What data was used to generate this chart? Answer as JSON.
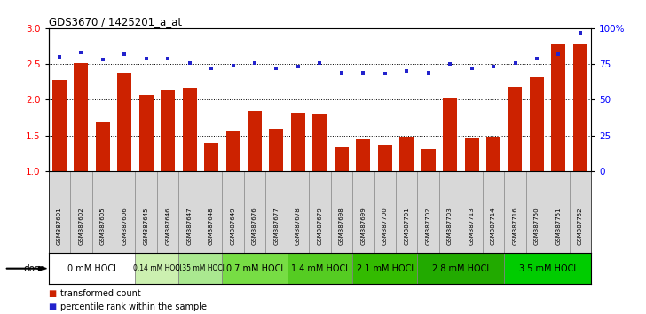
{
  "title": "GDS3670 / 1425201_a_at",
  "samples": [
    "GSM387601",
    "GSM387602",
    "GSM387605",
    "GSM387606",
    "GSM387645",
    "GSM387646",
    "GSM387647",
    "GSM387648",
    "GSM387649",
    "GSM387676",
    "GSM387677",
    "GSM387678",
    "GSM387679",
    "GSM387698",
    "GSM387699",
    "GSM387700",
    "GSM387701",
    "GSM387702",
    "GSM387703",
    "GSM387713",
    "GSM387714",
    "GSM387716",
    "GSM387750",
    "GSM387751",
    "GSM387752"
  ],
  "bar_values": [
    2.28,
    2.52,
    1.7,
    2.38,
    2.07,
    2.14,
    2.17,
    1.4,
    1.56,
    1.84,
    1.59,
    1.82,
    1.79,
    1.34,
    1.45,
    1.37,
    1.47,
    1.31,
    2.02,
    1.46,
    1.47,
    2.18,
    2.32,
    2.78,
    2.78
  ],
  "scatter_values": [
    80,
    83,
    78,
    82,
    79,
    79,
    76,
    72,
    74,
    76,
    72,
    73,
    76,
    69,
    69,
    68,
    70,
    69,
    75,
    72,
    73,
    76,
    79,
    82,
    97
  ],
  "dose_groups": [
    {
      "label": "0 mM HOCl",
      "start": 0,
      "end": 4,
      "color": "#ffffff"
    },
    {
      "label": "0.14 mM HOCl",
      "start": 4,
      "end": 6,
      "color": "#ccf0b0"
    },
    {
      "label": "0.35 mM HOCl",
      "start": 6,
      "end": 8,
      "color": "#aae890"
    },
    {
      "label": "0.7 mM HOCl",
      "start": 8,
      "end": 11,
      "color": "#77dd44"
    },
    {
      "label": "1.4 mM HOCl",
      "start": 11,
      "end": 14,
      "color": "#55cc22"
    },
    {
      "label": "2.1 mM HOCl",
      "start": 14,
      "end": 17,
      "color": "#33bb00"
    },
    {
      "label": "2.8 mM HOCl",
      "start": 17,
      "end": 21,
      "color": "#22aa00"
    },
    {
      "label": "3.5 mM HOCl",
      "start": 21,
      "end": 25,
      "color": "#00cc00"
    }
  ],
  "ylim_left": [
    1.0,
    3.0
  ],
  "ylim_right": [
    0,
    100
  ],
  "yticks_left": [
    1.0,
    1.5,
    2.0,
    2.5,
    3.0
  ],
  "yticks_right": [
    0,
    25,
    50,
    75,
    100
  ],
  "bar_color": "#cc2200",
  "scatter_color": "#2222cc",
  "background_color": "#ffffff",
  "xticklabel_bg": "#d8d8d8"
}
